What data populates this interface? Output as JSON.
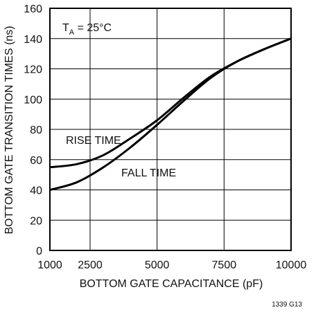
{
  "chart_data": {
    "type": "line",
    "xlabel": "BOTTOM GATE CAPACITANCE (pF)",
    "ylabel": "BOTTOM GATE TRANSITION TIMES (ns)",
    "xlim": [
      1000,
      10000
    ],
    "ylim": [
      0,
      160
    ],
    "x_ticks": [
      "1000",
      "2500",
      "5000",
      "7500",
      "10000"
    ],
    "x_tick_values": [
      1000,
      2500,
      5000,
      7500,
      10000
    ],
    "y_ticks": [
      "0",
      "20",
      "40",
      "60",
      "80",
      "100",
      "120",
      "140",
      "160"
    ],
    "y_tick_values": [
      0,
      20,
      40,
      60,
      80,
      100,
      120,
      140,
      160
    ],
    "grid": true,
    "annotation": {
      "main": "T",
      "sub": "A",
      "rest": " = 25°C"
    },
    "series": [
      {
        "name": "RISE TIME",
        "x": [
          1000,
          2000,
          3000,
          4000,
          5000,
          6000,
          7000,
          8000,
          9000,
          10000
        ],
        "y": [
          55,
          57,
          63,
          74,
          86,
          101,
          115,
          125,
          133,
          140
        ]
      },
      {
        "name": "FALL TIME",
        "x": [
          1000,
          2000,
          3000,
          4000,
          5000,
          6000,
          7000,
          8000,
          9000,
          10000
        ],
        "y": [
          40,
          45,
          55,
          68,
          83,
          99,
          114,
          125,
          133,
          140
        ]
      }
    ],
    "figure_id": "1339 G13"
  }
}
